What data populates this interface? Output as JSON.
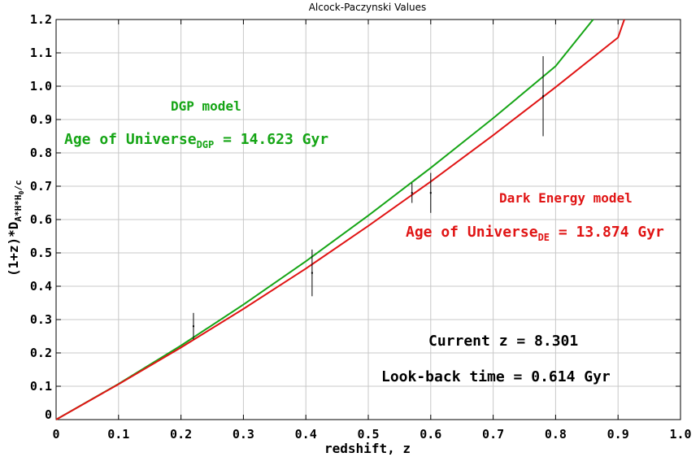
{
  "chart_data": {
    "type": "line",
    "title": "Alcock-Paczynski Values",
    "xlabel": "redshift, z",
    "ylabel": {
      "main": "(1+z)*D",
      "sub": "A*H*H",
      "sub2": "0",
      "tail": "/c"
    },
    "xlim": [
      0,
      1.0
    ],
    "ylim": [
      0,
      1.2
    ],
    "x_ticks": [
      "0",
      "0.1",
      "0.2",
      "0.3",
      "0.4",
      "0.5",
      "0.6",
      "0.7",
      "0.8",
      "0.9",
      "1.0"
    ],
    "y_ticks": [
      "0",
      "0.1",
      "0.2",
      "0.3",
      "0.4",
      "0.5",
      "0.6",
      "0.7",
      "0.8",
      "0.9",
      "1.0",
      "1.1",
      "1.2"
    ],
    "grid": true,
    "series": [
      {
        "name": "DGP model",
        "color": "#16a516",
        "x": [
          0,
          0.1,
          0.2,
          0.3,
          0.4,
          0.5,
          0.6,
          0.7,
          0.8,
          0.86
        ],
        "y": [
          0,
          0.107,
          0.222,
          0.345,
          0.475,
          0.612,
          0.755,
          0.904,
          1.06,
          1.2
        ]
      },
      {
        "name": "Dark Energy model",
        "color": "#e01414",
        "x": [
          0,
          0.1,
          0.2,
          0.3,
          0.4,
          0.5,
          0.6,
          0.7,
          0.8,
          0.9,
          0.91
        ],
        "y": [
          0,
          0.106,
          0.216,
          0.332,
          0.453,
          0.581,
          0.714,
          0.853,
          0.997,
          1.146,
          1.2
        ]
      }
    ],
    "data_points": [
      {
        "x": 0.22,
        "y": 0.28,
        "ylo": 0.24,
        "yhi": 0.32
      },
      {
        "x": 0.41,
        "y": 0.44,
        "ylo": 0.37,
        "yhi": 0.51
      },
      {
        "x": 0.57,
        "y": 0.68,
        "ylo": 0.65,
        "yhi": 0.71
      },
      {
        "x": 0.6,
        "y": 0.68,
        "ylo": 0.62,
        "yhi": 0.74
      },
      {
        "x": 0.78,
        "y": 0.97,
        "ylo": 0.85,
        "yhi": 1.09
      }
    ],
    "annotations": {
      "dgp_model": {
        "text": "DGP model",
        "color": "#16a516"
      },
      "dgp_age": {
        "prefix": "Age of Universe",
        "sub": "DGP",
        "suffix": " = 14.623 Gyr",
        "color": "#16a516"
      },
      "de_model": {
        "text": "Dark Energy model",
        "color": "#e01414"
      },
      "de_age": {
        "prefix": "Age of Universe",
        "sub": "DE",
        "suffix": " = 13.874 Gyr",
        "color": "#e01414"
      },
      "current_z": {
        "text": "Current z = 8.301",
        "color": "#000000"
      },
      "lookback": {
        "text": "Look-back time = 0.614 Gyr",
        "color": "#000000"
      }
    }
  }
}
